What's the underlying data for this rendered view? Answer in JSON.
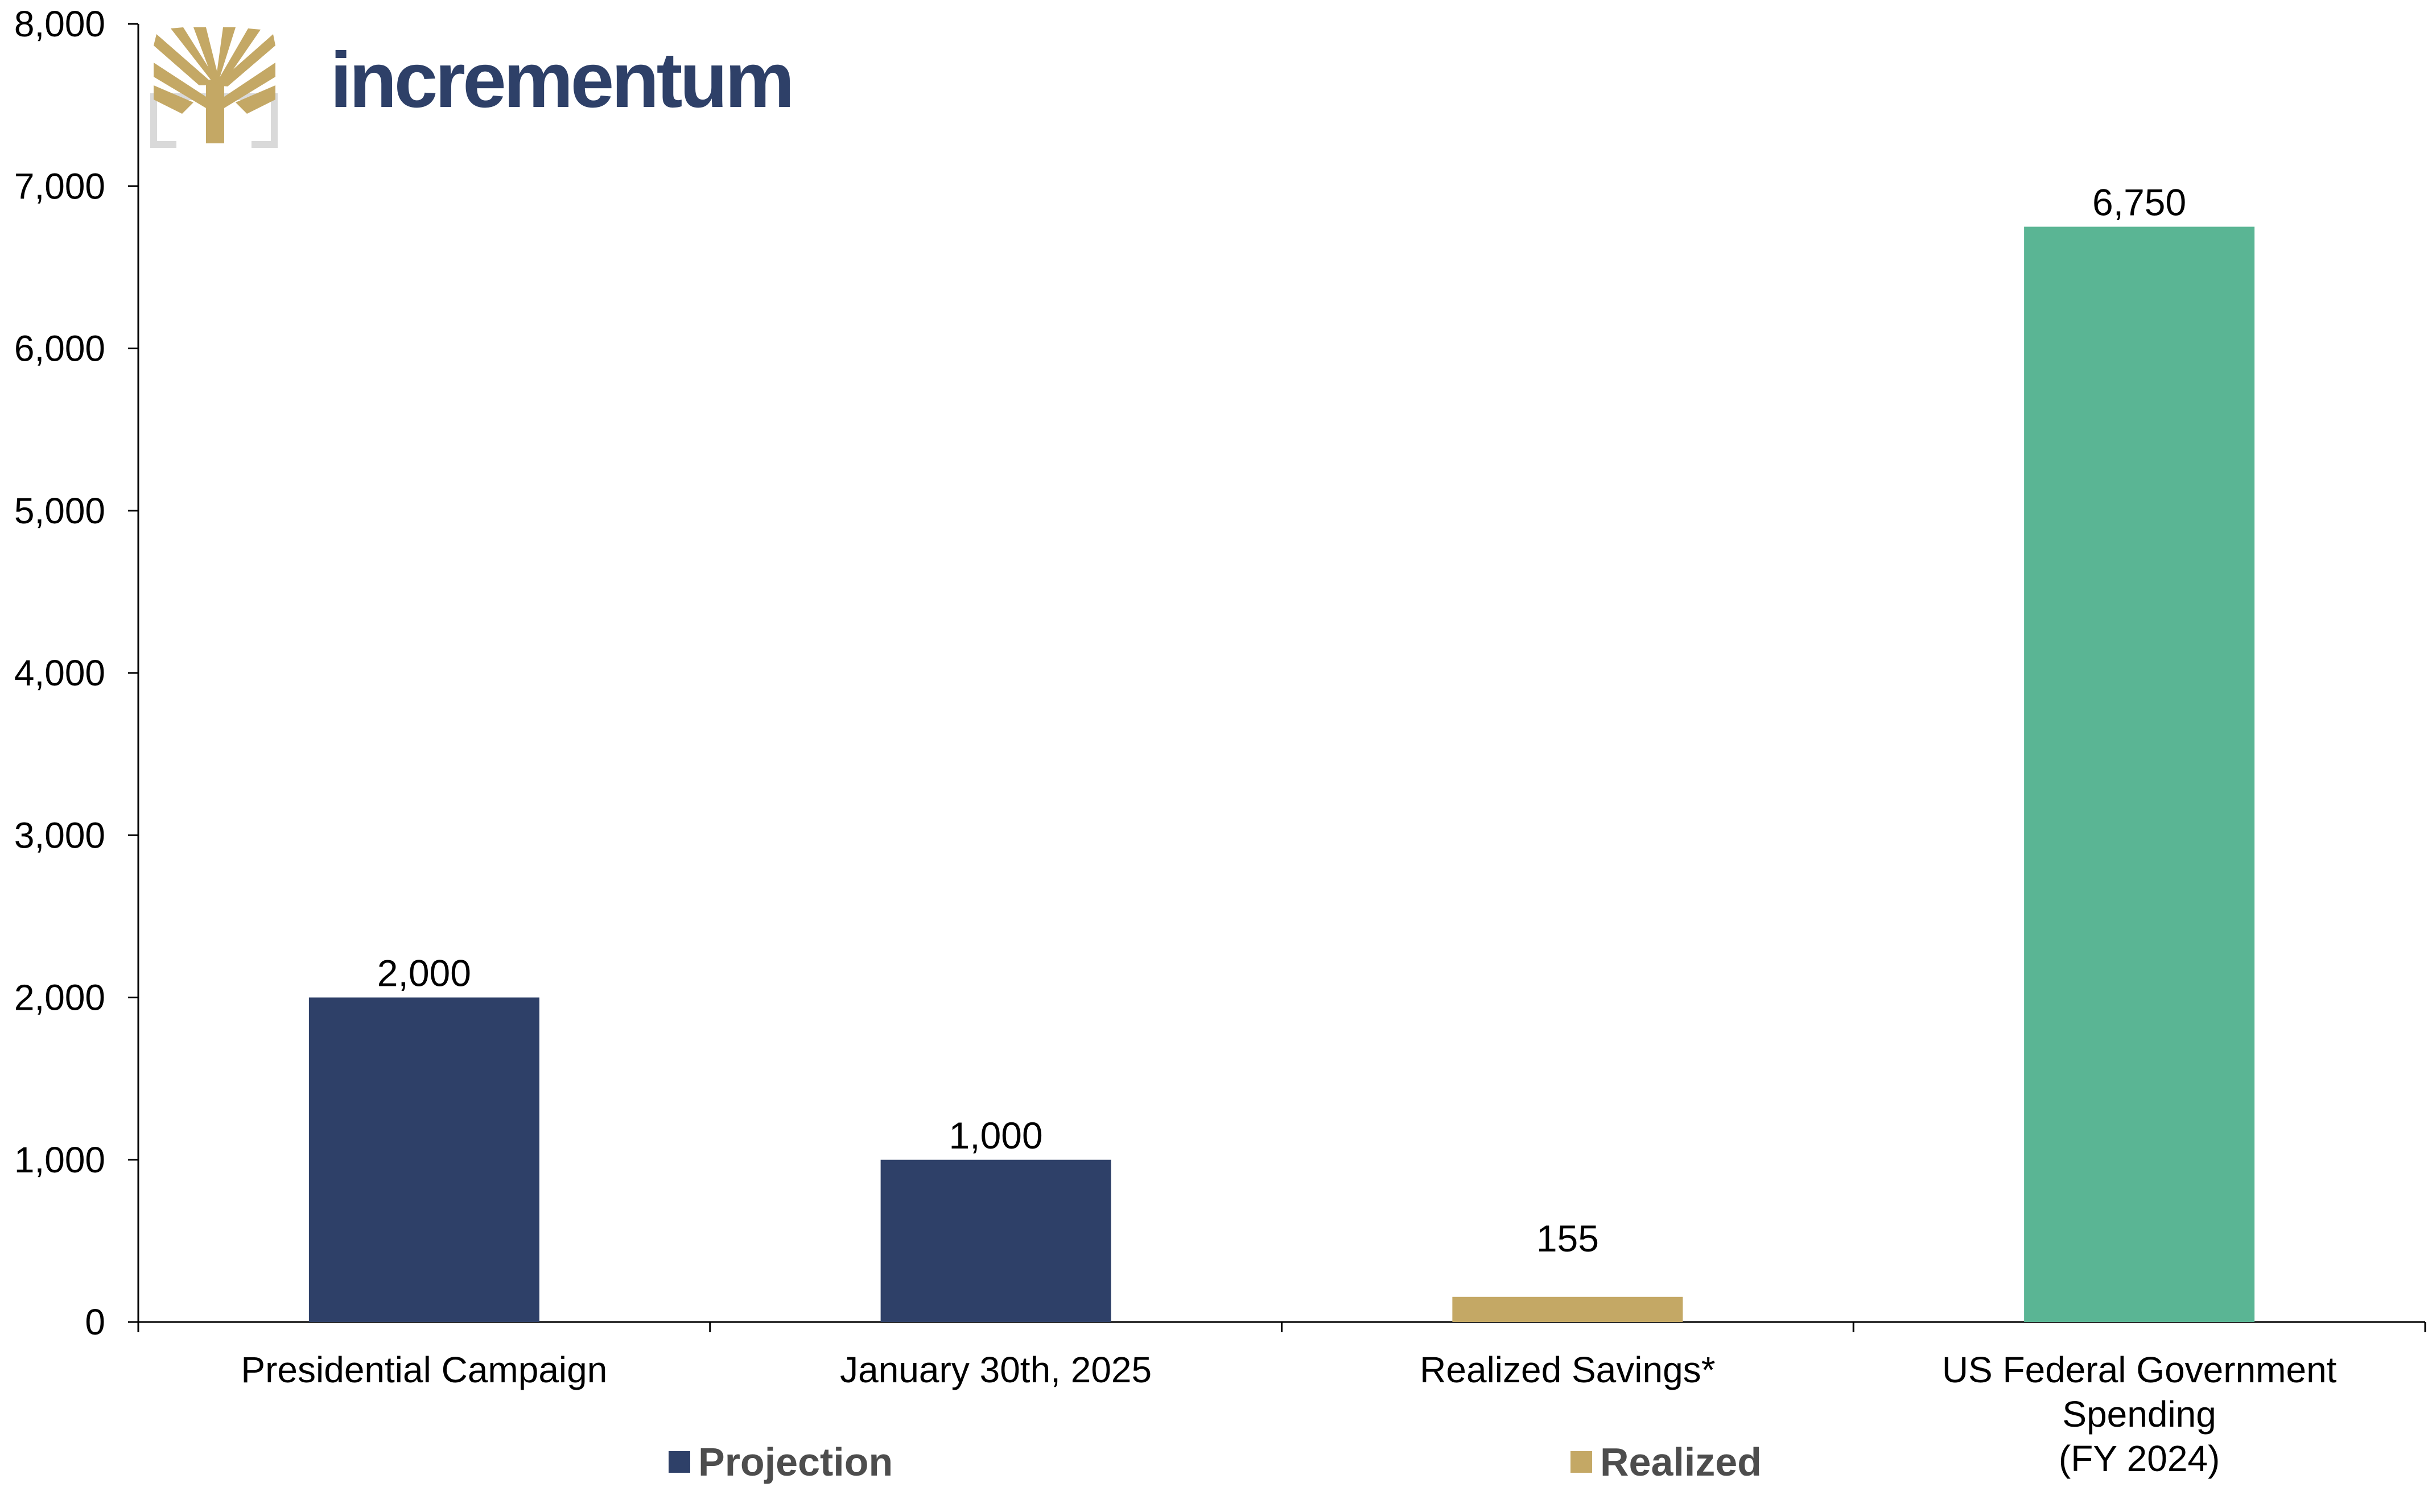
{
  "brand": {
    "name": "incrementum",
    "logo_icon": "tree-icon",
    "text_color": "#2e4068",
    "logo_color": "#c4a865",
    "logo_frame_color": "#d9d9d9"
  },
  "chart_data": {
    "type": "bar",
    "title": "",
    "xlabel": "",
    "ylabel": "",
    "ylim": [
      0,
      8000
    ],
    "yticks": [
      "0",
      "1,000",
      "2,000",
      "3,000",
      "4,000",
      "5,000",
      "6,000",
      "7,000",
      "8,000"
    ],
    "grid": false,
    "categories": [
      [
        "Presidential Campaign"
      ],
      [
        "January 30th, 2025"
      ],
      [
        "Realized  Savings*"
      ],
      [
        "US Federal Government",
        "Spending",
        "(FY 2024)"
      ]
    ],
    "values": [
      2000,
      1000,
      155,
      6750
    ],
    "value_labels": [
      "2,000",
      "1,000",
      "155",
      "6,750"
    ],
    "bar_colors": [
      "#2e4068",
      "#2e4068",
      "#c4a865",
      "#5ab594"
    ],
    "legend_position": "bottom",
    "legend": [
      {
        "name": "Projection",
        "color": "#2e4068"
      },
      {
        "name": "Realized",
        "color": "#c4a865"
      }
    ]
  }
}
